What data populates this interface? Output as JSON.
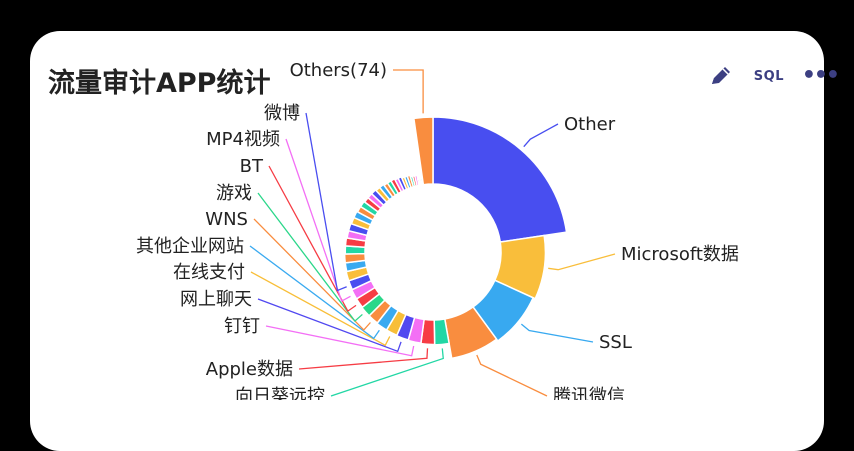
{
  "header": {
    "title": "流量审计APP统计",
    "sql_label": "SQL",
    "edit_icon": "pencil-icon",
    "more_icon": "more-icon",
    "more_label": "•••"
  },
  "chart_data": {
    "type": "pie",
    "variant": "donut",
    "title": "流量审计APP统计",
    "labeled_slices": [
      {
        "label": "Other",
        "value": 20.0,
        "color": "#484ef0"
      },
      {
        "label": "Microsoft数据",
        "value": 8.1,
        "color": "#f9be3b"
      },
      {
        "label": "SSL",
        "value": 7.2,
        "color": "#38a9f0"
      },
      {
        "label": "腾讯微信",
        "value": 6.4,
        "color": "#f98d3f"
      },
      {
        "label": "向日葵远控",
        "value": 2.2,
        "color": "#22d7a5"
      },
      {
        "label": "Apple数据",
        "value": 2.1,
        "color": "#f63c44"
      },
      {
        "label": "钉钉",
        "value": 2.0,
        "color": "#f36ff5"
      },
      {
        "label": "网上聊天",
        "value": 1.9,
        "color": "#5148f0"
      },
      {
        "label": "在线支付",
        "value": 1.8,
        "color": "#f8be38"
      },
      {
        "label": "其他企业网站",
        "value": 1.8,
        "color": "#3aaaf0"
      },
      {
        "label": "WNS",
        "value": 1.7,
        "color": "#f98d3f"
      },
      {
        "label": "游戏",
        "value": 1.7,
        "color": "#2bd78a"
      },
      {
        "label": "BT",
        "value": 1.6,
        "color": "#f63c44"
      },
      {
        "label": "MP4视频",
        "value": 1.6,
        "color": "#f36ff5"
      },
      {
        "label": "微博",
        "value": 1.5,
        "color": "#4a4ef0"
      },
      {
        "label": "Others(74)",
        "value": 2.0,
        "color": "#f98d3f"
      }
    ],
    "unlabeled_slices": [
      {
        "value": 1.5,
        "color": "#f9be3b"
      },
      {
        "value": 1.4,
        "color": "#38a9f0"
      },
      {
        "value": 1.4,
        "color": "#f98d3f"
      },
      {
        "value": 1.3,
        "color": "#22d7a5"
      },
      {
        "value": 1.3,
        "color": "#f63c44"
      },
      {
        "value": 1.2,
        "color": "#f36ff5"
      },
      {
        "value": 1.2,
        "color": "#484ef0"
      },
      {
        "value": 1.1,
        "color": "#f9be3b"
      },
      {
        "value": 1.1,
        "color": "#38a9f0"
      },
      {
        "value": 1.0,
        "color": "#f98d3f"
      },
      {
        "value": 1.0,
        "color": "#22d7a5"
      },
      {
        "value": 0.9,
        "color": "#f63c44"
      },
      {
        "value": 0.9,
        "color": "#f36ff5"
      },
      {
        "value": 0.9,
        "color": "#484ef0"
      },
      {
        "value": 0.8,
        "color": "#f9be3b"
      },
      {
        "value": 0.8,
        "color": "#38a9f0"
      },
      {
        "value": 0.7,
        "color": "#f98d3f"
      },
      {
        "value": 0.7,
        "color": "#22d7a5"
      },
      {
        "value": 0.7,
        "color": "#f63c44"
      },
      {
        "value": 0.6,
        "color": "#f36ff5"
      },
      {
        "value": 0.6,
        "color": "#484ef0"
      },
      {
        "value": 0.5,
        "color": "#f9be3b"
      },
      {
        "value": 0.5,
        "color": "#38a9f0"
      },
      {
        "value": 0.5,
        "color": "#f98d3f"
      },
      {
        "value": 0.4,
        "color": "#22d7a5"
      },
      {
        "value": 0.4,
        "color": "#f63c44"
      },
      {
        "value": 0.4,
        "color": "#f36ff5"
      },
      {
        "value": 0.3,
        "color": "#484ef0"
      },
      {
        "value": 0.3,
        "color": "#f9be3b"
      },
      {
        "value": 0.3,
        "color": "#38a9f0"
      }
    ],
    "legend": "none",
    "labels_with_leader_lines": true
  }
}
